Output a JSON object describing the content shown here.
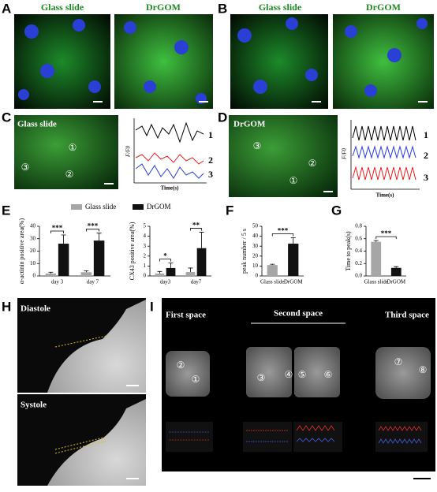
{
  "panel_letters": [
    "A",
    "B",
    "C",
    "D",
    "E",
    "F",
    "G",
    "H",
    "I"
  ],
  "A": {
    "labels": [
      "Glass slide",
      "DrGOM"
    ]
  },
  "B": {
    "labels": [
      "Glass slide",
      "DrGOM"
    ]
  },
  "C": {
    "image_label": "Glass slide",
    "rois": [
      "①",
      "③",
      "②"
    ],
    "ylabel": "F/F0",
    "xlabel": "Time(s)",
    "traces": [
      "1",
      "2",
      "3"
    ]
  },
  "D": {
    "image_label": "DrGOM",
    "rois": [
      "③",
      "②",
      "①"
    ],
    "ylabel": "F/F0",
    "xlabel": "Time(s)",
    "traces": [
      "1",
      "2",
      "3"
    ]
  },
  "chart_data": [
    {
      "type": "bar",
      "ylabel": "α-actinin positive area(%)",
      "categories": [
        "day 3",
        "day 7"
      ],
      "series": [
        {
          "name": "Glass slide",
          "color": "#a6a6a6",
          "values": [
            2,
            3
          ],
          "errors": [
            1,
            1.2
          ]
        },
        {
          "name": "DrGOM",
          "color": "#111111",
          "values": [
            26,
            28.5
          ],
          "errors": [
            7,
            6
          ]
        }
      ],
      "ylim": [
        0,
        40
      ],
      "yticks": [
        0,
        10,
        20,
        30,
        40
      ],
      "significance": [
        "***",
        "***"
      ]
    },
    {
      "type": "bar",
      "ylabel": "CX43 positive area(%)",
      "categories": [
        "day3",
        "day7"
      ],
      "series": [
        {
          "color": "#a6a6a6",
          "values": [
            0.25,
            0.4
          ],
          "errors": [
            0.2,
            0.4
          ]
        },
        {
          "color": "#111111",
          "values": [
            0.8,
            2.8
          ],
          "errors": [
            0.5,
            1.6
          ]
        }
      ],
      "ylim": [
        0,
        5
      ],
      "yticks": [
        0,
        1,
        2,
        3,
        4,
        5
      ],
      "significance": [
        "*",
        "**"
      ]
    },
    {
      "type": "bar",
      "ylabel": "peak number / 5 s",
      "categories": [
        "Glass slide",
        "DrGOM"
      ],
      "values": [
        11,
        32.5
      ],
      "errors": [
        0.8,
        6
      ],
      "colors": [
        "#a6a6a6",
        "#111111"
      ],
      "ylim": [
        0,
        50
      ],
      "yticks": [
        0,
        10,
        20,
        30,
        40,
        50
      ],
      "significance": [
        "***"
      ]
    },
    {
      "type": "bar",
      "ylabel": "Time to peak(s)",
      "categories": [
        "Glass slide",
        "DrGOM"
      ],
      "values": [
        0.55,
        0.13
      ],
      "errors": [
        0.02,
        0.02
      ],
      "colors": [
        "#a6a6a6",
        "#111111"
      ],
      "ylim": [
        0,
        0.8
      ],
      "yticks": [
        {
          "value": 0,
          "label": "0.0"
        },
        0.2,
        0.4,
        0.6,
        0.8
      ],
      "significance": [
        "***"
      ]
    }
  ],
  "H": {
    "labels": [
      "Diastole",
      "Systole"
    ]
  },
  "I": {
    "headings": [
      "First space",
      "Second space",
      "Third space"
    ],
    "rois": [
      "②",
      "①",
      "③",
      "④",
      "⑤",
      "⑥",
      "⑦",
      "⑧"
    ]
  }
}
